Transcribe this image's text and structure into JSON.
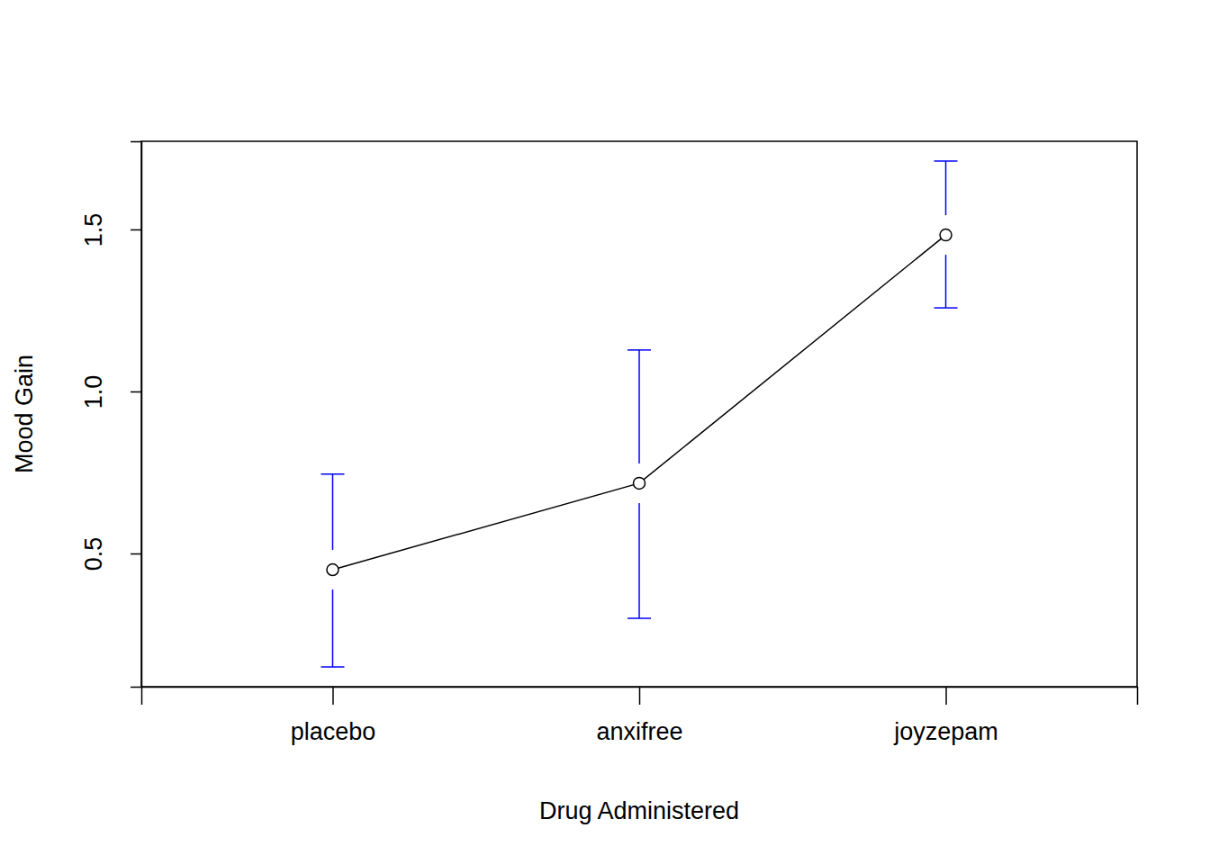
{
  "chart_data": {
    "type": "line",
    "x_label": "Drug Administered",
    "y_label": "Mood Gain",
    "categories": [
      "placebo",
      "anxifree",
      "joyzepam"
    ],
    "values": [
      0.45,
      0.717,
      1.483
    ],
    "ci_lower": [
      0.15,
      0.3,
      1.258
    ],
    "ci_upper": [
      0.745,
      1.128,
      1.711
    ],
    "color": "#000000",
    "marker": "circle",
    "ylim": [
      0.089,
      1.772
    ],
    "yticks": [
      0.5,
      {
        "value": 1,
        "label": "1.0"
      },
      1.5
    ]
  }
}
